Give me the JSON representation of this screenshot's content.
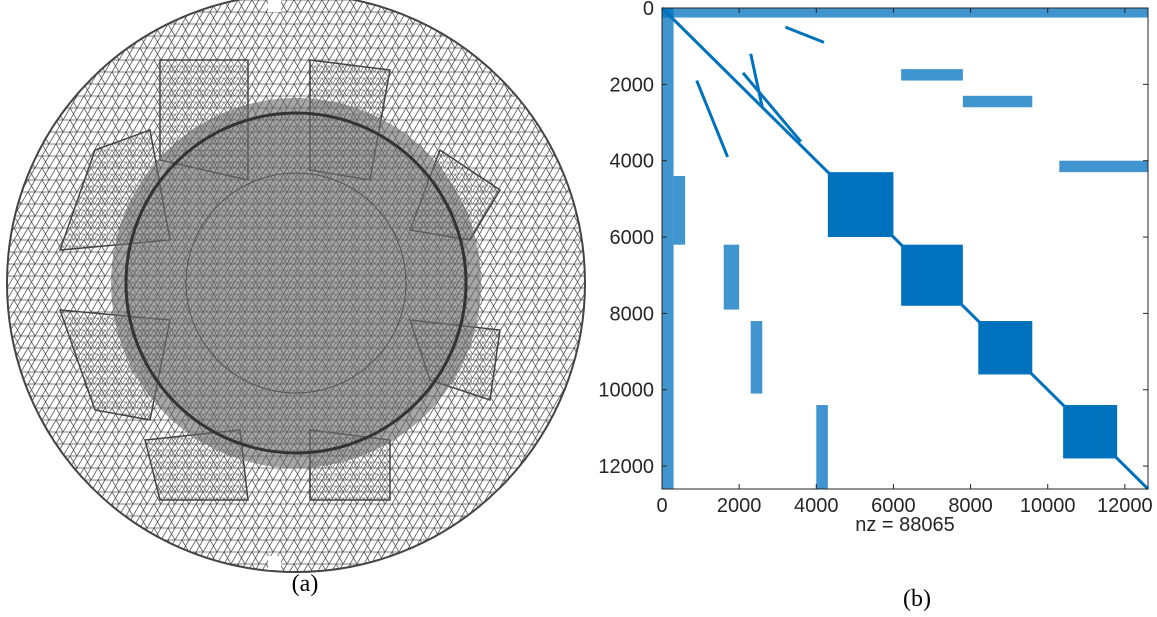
{
  "captions": {
    "a": "(a)",
    "b": "(b)"
  },
  "chart_data": {
    "type": "spy",
    "xlabel": "nz = 88065",
    "color": "#0072bd",
    "xlim": [
      0,
      12600
    ],
    "ylim": [
      0,
      12600
    ],
    "y_reversed": true,
    "xticks": [
      0,
      2000,
      4000,
      6000,
      8000,
      10000,
      12000
    ],
    "yticks": [
      0,
      2000,
      4000,
      6000,
      8000,
      10000,
      12000
    ],
    "blocks": [
      {
        "x": [
          4300,
          6000
        ],
        "y": [
          4300,
          6000
        ]
      },
      {
        "x": [
          6200,
          7800
        ],
        "y": [
          6200,
          7800
        ]
      },
      {
        "x": [
          8200,
          9600
        ],
        "y": [
          8200,
          9600
        ]
      },
      {
        "x": [
          10400,
          11800
        ],
        "y": [
          10400,
          11800
        ]
      },
      {
        "x": [
          6200,
          7800
        ],
        "y": [
          1600,
          1900
        ]
      },
      {
        "x": [
          7800,
          9600
        ],
        "y": [
          2300,
          2600
        ]
      },
      {
        "x": [
          10300,
          12600
        ],
        "y": [
          4000,
          4300
        ]
      },
      {
        "x": [
          300,
          600
        ],
        "y": [
          4400,
          6200
        ]
      },
      {
        "x": [
          1600,
          2000
        ],
        "y": [
          6200,
          7900
        ]
      },
      {
        "x": [
          2300,
          2600
        ],
        "y": [
          8200,
          10100
        ]
      },
      {
        "x": [
          4000,
          4300
        ],
        "y": [
          10400,
          12600
        ]
      },
      {
        "x": [
          0,
          300
        ],
        "y": [
          0,
          12600
        ]
      },
      {
        "x": [
          0,
          12600
        ],
        "y": [
          0,
          250
        ]
      }
    ],
    "segments": [
      {
        "x": [
          0,
          12600
        ],
        "y": [
          0,
          12600
        ]
      },
      {
        "x": [
          900,
          1700
        ],
        "y": [
          1900,
          3900
        ]
      },
      {
        "x": [
          2100,
          3600
        ],
        "y": [
          1700,
          3500
        ]
      },
      {
        "x": [
          3200,
          4200
        ],
        "y": [
          500,
          900
        ]
      },
      {
        "x": [
          2300,
          2600
        ],
        "y": [
          1200,
          2600
        ]
      }
    ]
  }
}
